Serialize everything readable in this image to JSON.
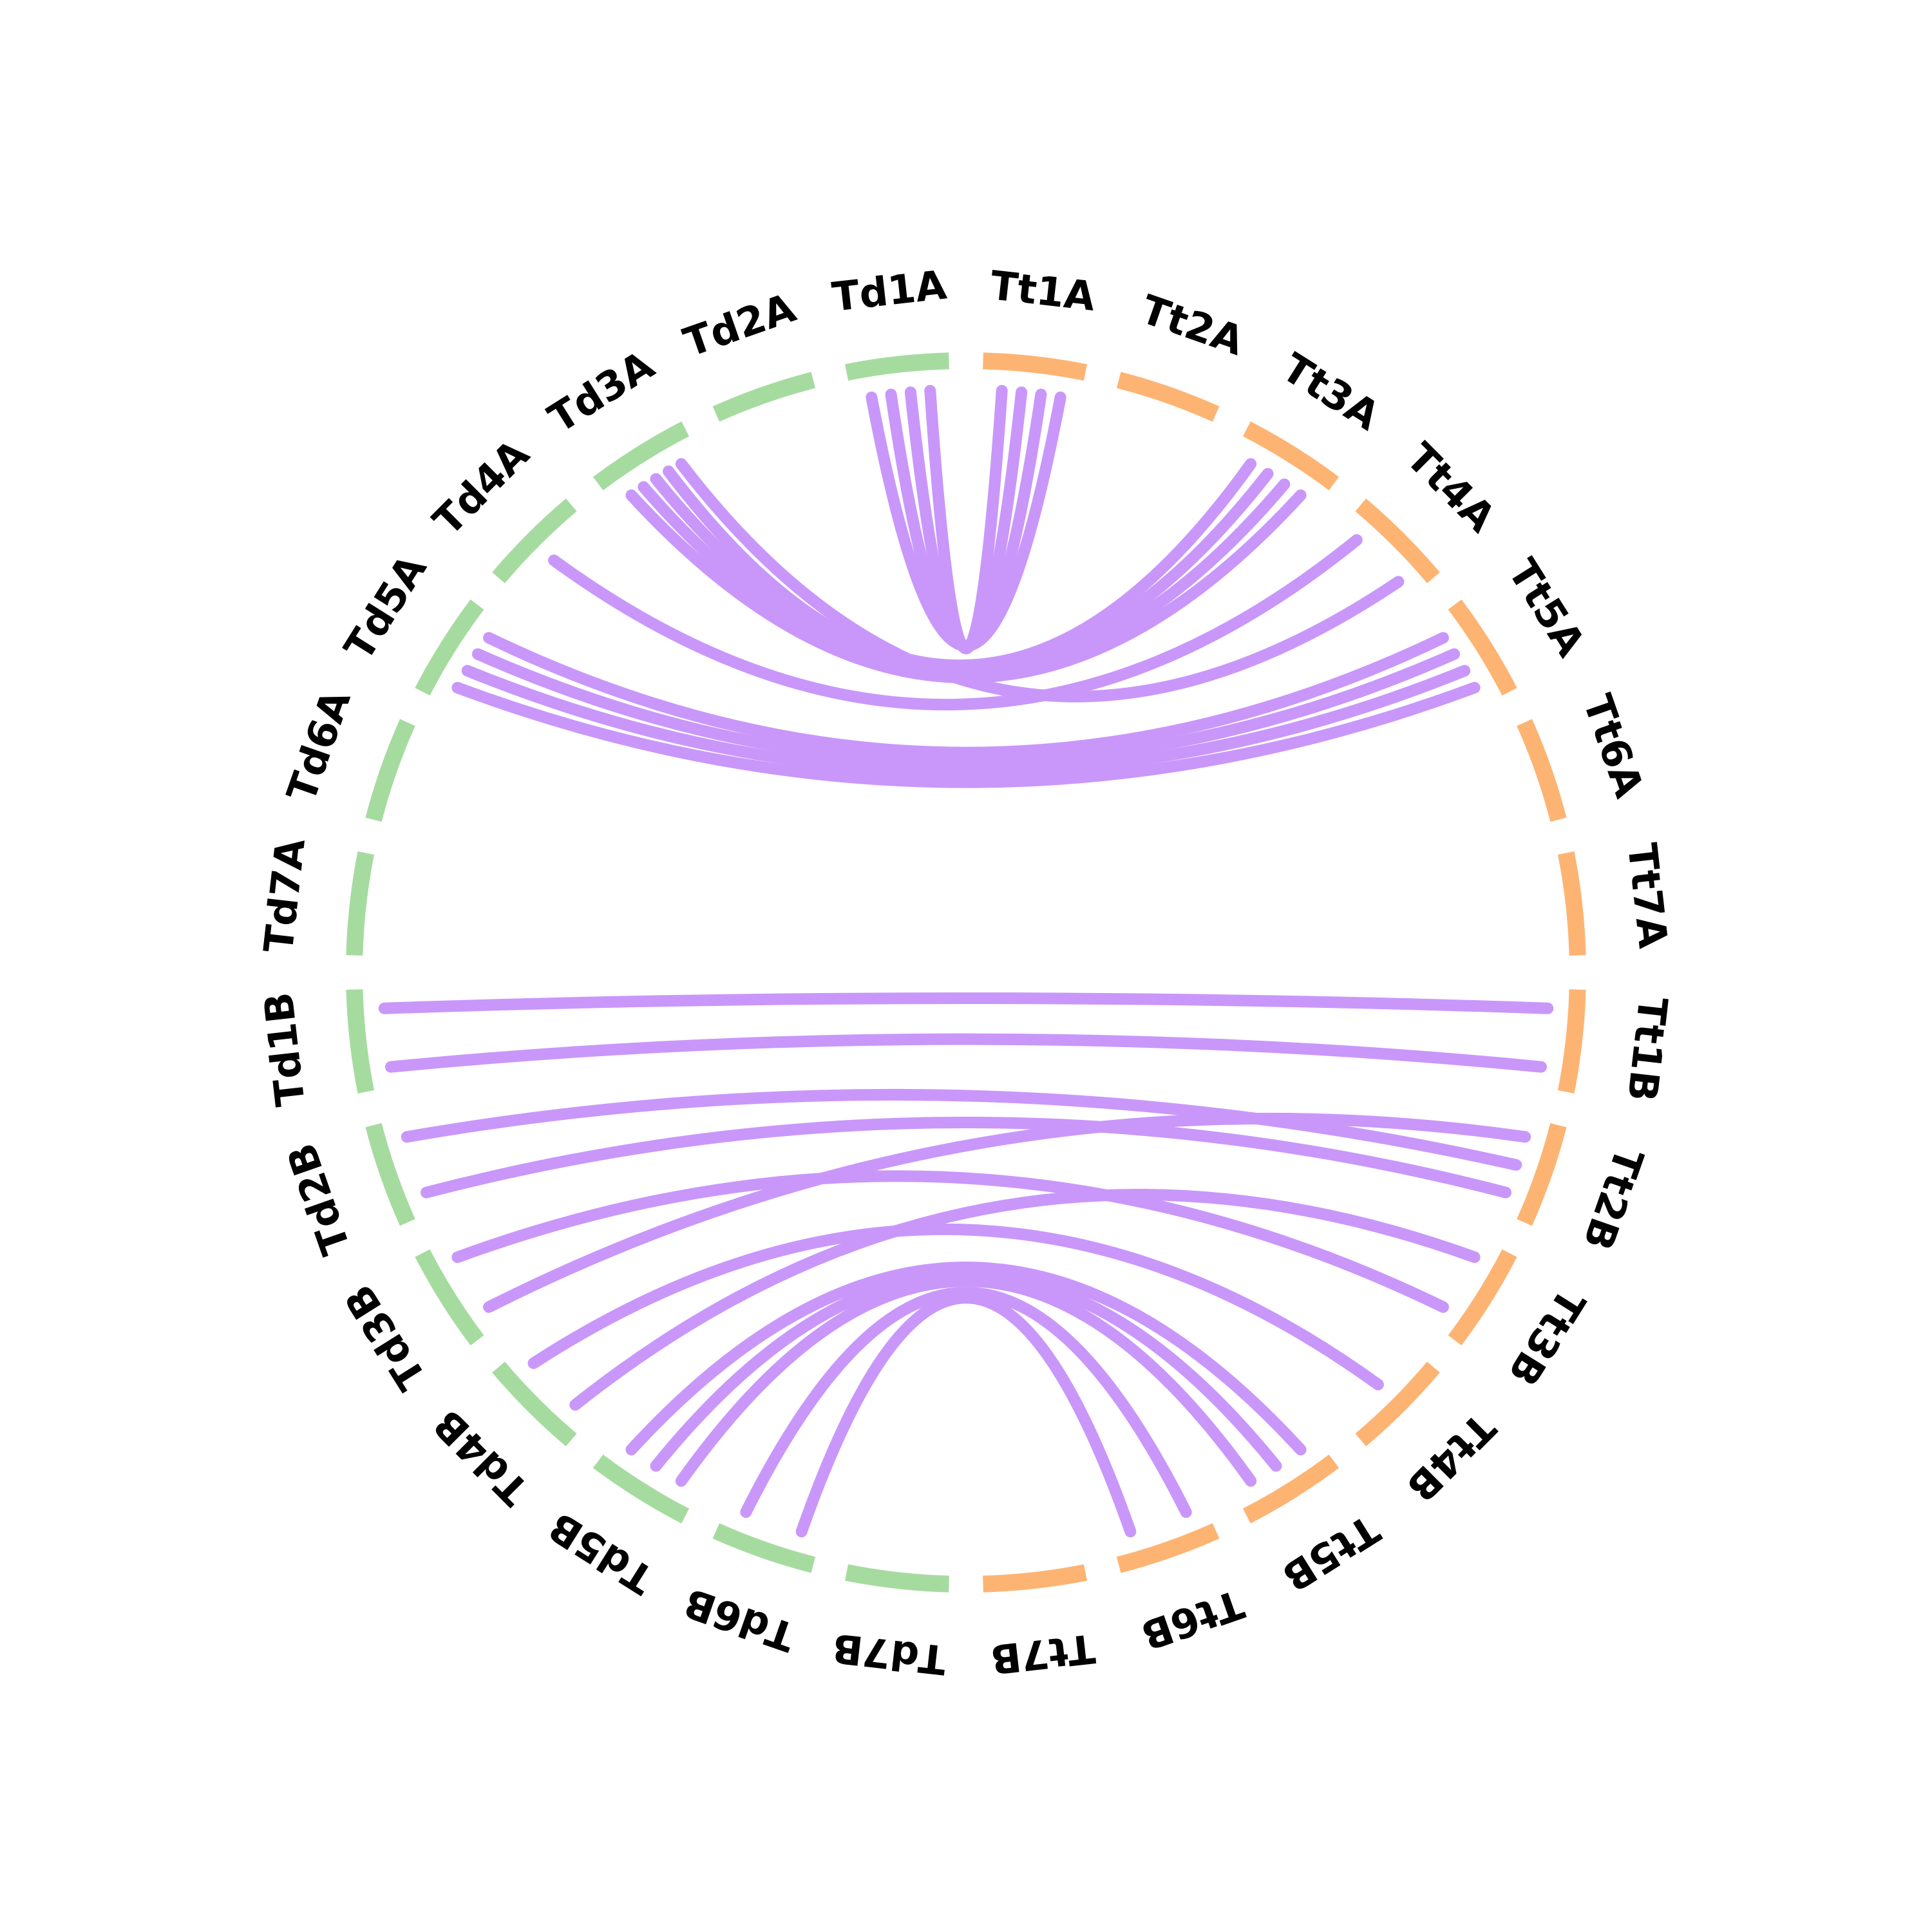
{
  "colors": {
    "durum": "#a6dba0",
    "turgidum": "#fdb473",
    "link": "#c997fa"
  },
  "chart_data": {
    "type": "chord",
    "chromosomes": [
      {
        "name": "Td1A",
        "group": "durum"
      },
      {
        "name": "Td2A",
        "group": "durum"
      },
      {
        "name": "Td3A",
        "group": "durum"
      },
      {
        "name": "Td4A",
        "group": "durum"
      },
      {
        "name": "Td5A",
        "group": "durum"
      },
      {
        "name": "Td6A",
        "group": "durum"
      },
      {
        "name": "Td7A",
        "group": "durum"
      },
      {
        "name": "Td1B",
        "group": "durum"
      },
      {
        "name": "Td2B",
        "group": "durum"
      },
      {
        "name": "Td3B",
        "group": "durum"
      },
      {
        "name": "Td4B",
        "group": "durum"
      },
      {
        "name": "Td5B",
        "group": "durum"
      },
      {
        "name": "Td6B",
        "group": "durum"
      },
      {
        "name": "Td7B",
        "group": "durum"
      },
      {
        "name": "Tt7B",
        "group": "turgidum"
      },
      {
        "name": "Tt6B",
        "group": "turgidum"
      },
      {
        "name": "Tt5B",
        "group": "turgidum"
      },
      {
        "name": "Tt4B",
        "group": "turgidum"
      },
      {
        "name": "Tt3B",
        "group": "turgidum"
      },
      {
        "name": "Tt2B",
        "group": "turgidum"
      },
      {
        "name": "Tt1B",
        "group": "turgidum"
      },
      {
        "name": "Tt7A",
        "group": "turgidum"
      },
      {
        "name": "Tt6A",
        "group": "turgidum"
      },
      {
        "name": "Tt5A",
        "group": "turgidum"
      },
      {
        "name": "Tt4A",
        "group": "turgidum"
      },
      {
        "name": "Tt3A",
        "group": "turgidum"
      },
      {
        "name": "Tt2A",
        "group": "turgidum"
      },
      {
        "name": "Tt1A",
        "group": "turgidum"
      }
    ],
    "links": [
      {
        "source": "Td1A",
        "target": "Tt1A"
      },
      {
        "source": "Td1A",
        "target": "Tt1A"
      },
      {
        "source": "Td1A",
        "target": "Tt1A"
      },
      {
        "source": "Td1A",
        "target": "Tt1A"
      },
      {
        "source": "Td3A",
        "target": "Tt3A"
      },
      {
        "source": "Td3A",
        "target": "Tt3A"
      },
      {
        "source": "Td3A",
        "target": "Tt3A"
      },
      {
        "source": "Td3A",
        "target": "Tt3A"
      },
      {
        "source": "Td3A",
        "target": "Tt4A"
      },
      {
        "source": "Td4A",
        "target": "Tt4A"
      },
      {
        "source": "Td5A",
        "target": "Tt5A"
      },
      {
        "source": "Td5A",
        "target": "Tt5A"
      },
      {
        "source": "Td5A",
        "target": "Tt5A"
      },
      {
        "source": "Td5A",
        "target": "Tt5A"
      },
      {
        "source": "Td1B",
        "target": "Tt1B"
      },
      {
        "source": "Td1B",
        "target": "Tt1B"
      },
      {
        "source": "Td2B",
        "target": "Tt2B"
      },
      {
        "source": "Td2B",
        "target": "Tt2B"
      },
      {
        "source": "Td3B",
        "target": "Tt2B"
      },
      {
        "source": "Td3B",
        "target": "Tt3B"
      },
      {
        "source": "Td4B",
        "target": "Tt3B"
      },
      {
        "source": "Td4B",
        "target": "Tt4B"
      },
      {
        "source": "Td5B",
        "target": "Tt5B"
      },
      {
        "source": "Td5B",
        "target": "Tt5B"
      },
      {
        "source": "Td5B",
        "target": "Tt5B"
      },
      {
        "source": "Td6B",
        "target": "Tt6B"
      },
      {
        "source": "Td6B",
        "target": "Tt6B"
      }
    ]
  }
}
